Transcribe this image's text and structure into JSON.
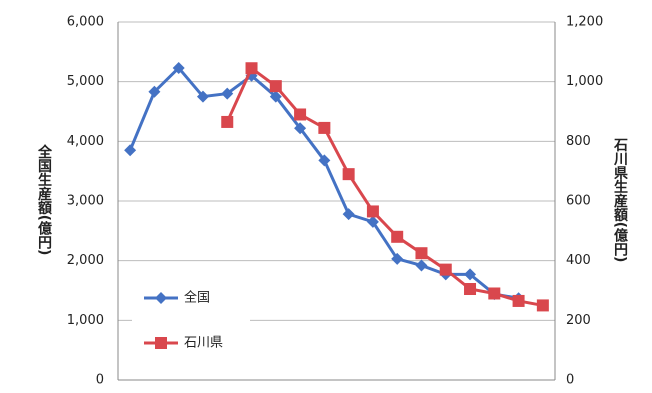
{
  "chart_data": {
    "type": "line",
    "y_label": "全国生産額(億円)",
    "y2_label": "石川県生産額(億円)",
    "categories": [
      null,
      null,
      null,
      null,
      null,
      null,
      null,
      null,
      null,
      null,
      null,
      null,
      null,
      null,
      null,
      null,
      null,
      null
    ],
    "series": [
      {
        "name": "全国",
        "color": "#4472c4",
        "marker": "diamond",
        "values": [
          3850,
          4830,
          5230,
          4750,
          4800,
          5100,
          4750,
          4220,
          3680,
          2780,
          2650,
          2030,
          1920,
          1770,
          1770,
          1440,
          1370,
          null
        ]
      },
      {
        "name": "石川県",
        "color": "#d9474d",
        "marker": "square",
        "axis": "y2",
        "values": [
          null,
          null,
          null,
          null,
          865,
          1045,
          985,
          890,
          845,
          690,
          565,
          480,
          425,
          370,
          305,
          290,
          265,
          250
        ]
      }
    ],
    "ylim": [
      0,
      6000
    ],
    "yticks": [
      0,
      {
        "value": 1000,
        "label": "1,000"
      },
      {
        "value": 2000,
        "label": "2,000"
      },
      {
        "value": 3000,
        "label": "3,000"
      },
      {
        "value": 4000,
        "label": "4,000"
      },
      {
        "value": 5000,
        "label": "5,000"
      },
      {
        "value": 6000,
        "label": "6,000"
      }
    ],
    "y2lim": [
      0,
      1200
    ],
    "y2ticks": [
      0,
      200,
      400,
      600,
      800,
      {
        "value": 1000,
        "label": "1,000"
      },
      {
        "value": 1200,
        "label": "1,200"
      }
    ],
    "grid": true
  }
}
